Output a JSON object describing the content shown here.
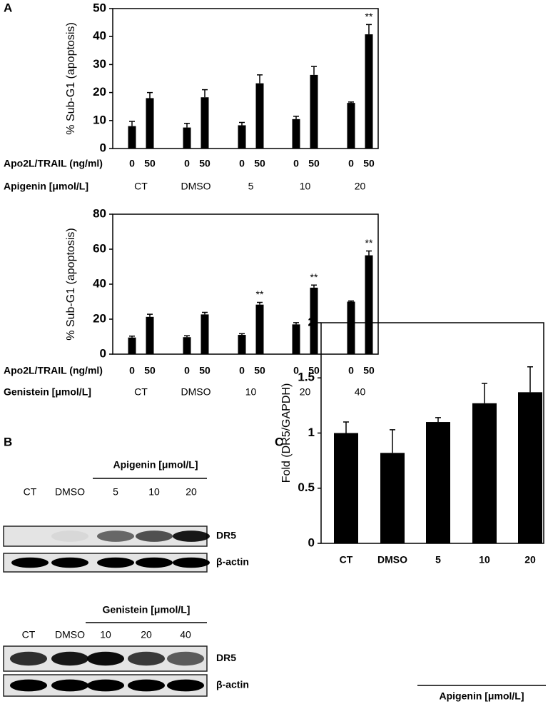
{
  "panels": [
    "A",
    "B",
    "C"
  ],
  "chart_data": [
    {
      "type": "bar",
      "y_label": "% Sub-G1 (apoptosis)",
      "color": "#000000",
      "categories": [
        "0",
        "50",
        "0",
        "50",
        "0",
        "50",
        "0",
        "50",
        "0",
        "50"
      ],
      "values": [
        8,
        18,
        7.5,
        18.3,
        8.3,
        23.3,
        10.5,
        26.3,
        16.3,
        40.8
      ],
      "errors": [
        1.7,
        2,
        1.5,
        2.7,
        1,
        3,
        1,
        3,
        0.3,
        3.5
      ],
      "significance": [
        null,
        null,
        null,
        null,
        null,
        null,
        null,
        null,
        null,
        "**"
      ],
      "x_label": "Apo2L/TRAIL (ng/ml)",
      "group_label": "Apigenin [μmol/L]",
      "groups": [
        "CT",
        "DMSO",
        "5",
        "10",
        "20"
      ],
      "ylim": [
        0,
        50
      ],
      "yticks": [
        0,
        10,
        20,
        30,
        40,
        50
      ]
    },
    {
      "type": "bar",
      "y_label": "% Sub-G1 (apoptosis)",
      "color": "#000000",
      "categories": [
        "0",
        "50",
        "0",
        "50",
        "0",
        "50",
        "0",
        "50",
        "0",
        "50"
      ],
      "values": [
        9.5,
        21.3,
        9.7,
        22.7,
        11,
        28.3,
        17,
        38,
        30,
        56.5
      ],
      "errors": [
        0.8,
        1.5,
        0.8,
        1.2,
        0.7,
        1.3,
        1,
        1.5,
        0.4,
        2.5
      ],
      "significance": [
        null,
        null,
        null,
        null,
        null,
        "**",
        null,
        "**",
        null,
        "**"
      ],
      "x_label": "Apo2L/TRAIL (ng/ml)",
      "group_label": "Genistein [μmol/L]",
      "groups": [
        "CT",
        "DMSO",
        "10",
        "20",
        "40"
      ],
      "ylim": [
        0,
        80
      ],
      "yticks": [
        0,
        20,
        40,
        60,
        80
      ]
    },
    {
      "type": "bar",
      "y_label": "Fold (DR5/GAPDH)",
      "color": "#000000",
      "categories": [
        "CT",
        "DMSO",
        "5",
        "10",
        "20"
      ],
      "values": [
        1.0,
        0.82,
        1.1,
        1.27,
        1.37
      ],
      "errors": [
        0.1,
        0.21,
        0.04,
        0.18,
        0.23
      ],
      "group_label": "Apigenin [μmol/L]",
      "ylim": [
        0,
        2
      ],
      "yticks": [
        0,
        0.5,
        1,
        1.5,
        2
      ]
    }
  ],
  "blots": [
    {
      "treatment": "Apigenin [μmol/L]",
      "lanes": [
        "CT",
        "DMSO",
        "5",
        "10",
        "20"
      ],
      "rows": [
        "DR5",
        "β-actin"
      ]
    },
    {
      "treatment": "Genistein [μmol/L]",
      "lanes": [
        "CT",
        "DMSO",
        "10",
        "20",
        "40"
      ],
      "rows": [
        "DR5",
        "β-actin"
      ]
    }
  ]
}
